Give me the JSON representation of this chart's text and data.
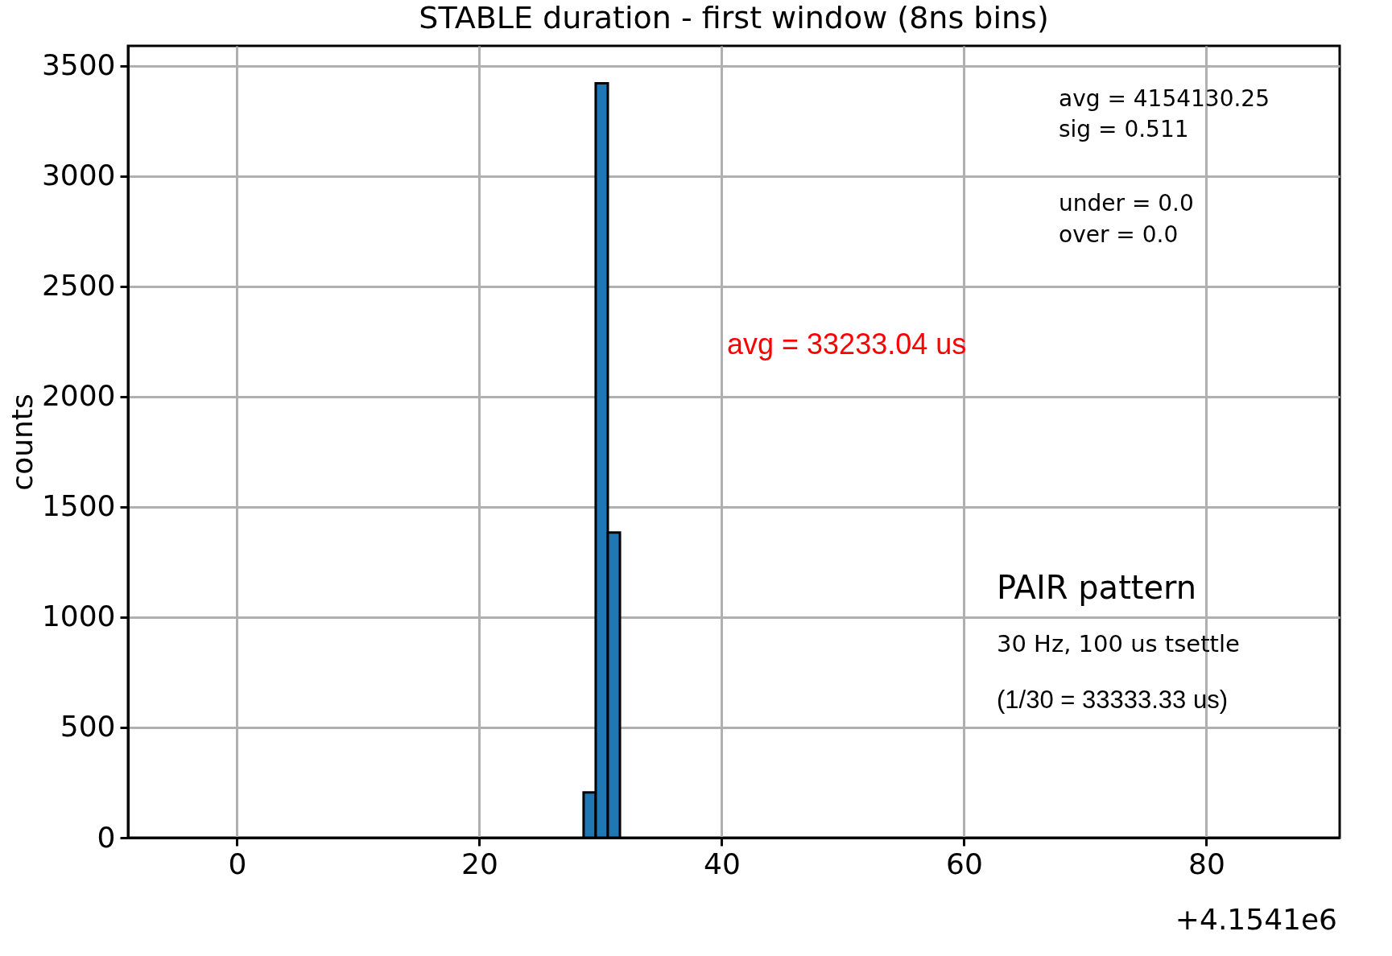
{
  "chart_data": {
    "type": "histogram",
    "title": "STABLE duration - first window (8ns bins)",
    "ylabel": "counts",
    "bins": [
      28.6,
      29.6,
      30.6,
      31.6
    ],
    "values": [
      205,
      3420,
      1384
    ],
    "color": "#1f77b4",
    "xlim": [
      -9,
      91
    ],
    "xticks": [
      0,
      20,
      40,
      60,
      80
    ],
    "ylim": [
      0,
      3590
    ],
    "yticks": [
      0,
      500,
      1000,
      1500,
      2000,
      2500,
      3000,
      3500
    ],
    "grid": true,
    "annotations": [
      "avg = 4154130.25",
      "sig  = 0.511",
      "under = 0.0",
      "over   = 0.0",
      "avg = 33233.04 us",
      "PAIR pattern",
      "30 Hz, 100 us tsettle",
      "(1/30 = 33333.33 us)",
      "+4.1541e6"
    ]
  }
}
